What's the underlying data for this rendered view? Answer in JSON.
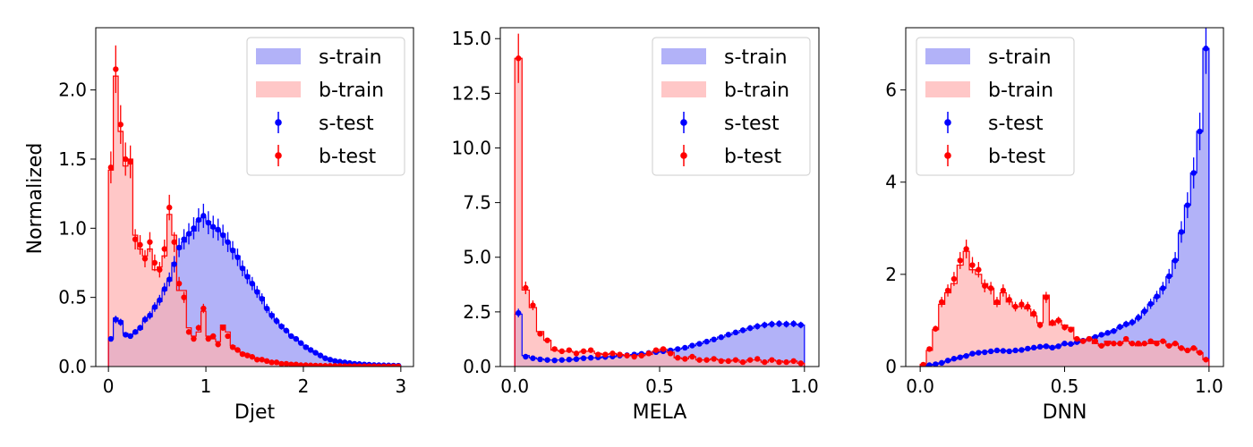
{
  "figure": {
    "ylabel": "Normalized"
  },
  "legend_labels": {
    "s_train": "s-train",
    "b_train": "b-train",
    "s_test": "s-test",
    "b_test": "b-test"
  },
  "colors": {
    "signal_fill": "#aeaef8",
    "signal_line": "#0000ff",
    "background_fill": "#ffb2b2",
    "background_line": "#ff0000",
    "overlap_fill": "#c57fac"
  },
  "chart_data": [
    {
      "type": "histogram",
      "xlabel": "Djet",
      "ylabel": "Normalized",
      "xlim": [
        -0.13,
        3.13
      ],
      "ylim": [
        0,
        2.45
      ],
      "xticks": [
        0,
        1,
        2,
        3
      ],
      "xtick_labels": [
        "0",
        "1",
        "2",
        "3"
      ],
      "yticks": [
        0,
        0.5,
        1.0,
        1.5,
        2.0
      ],
      "ytick_labels": [
        "0.0",
        "0.5",
        "1.0",
        "1.5",
        "2.0"
      ],
      "legend_position": "top-right",
      "bin_range": [
        0,
        3
      ],
      "series": [
        {
          "name": "s-train",
          "style": "filled-step",
          "values": [
            0.2,
            0.35,
            0.33,
            0.24,
            0.22,
            0.24,
            0.27,
            0.33,
            0.36,
            0.42,
            0.47,
            0.55,
            0.62,
            0.75,
            0.85,
            0.9,
            0.95,
            0.98,
            1.05,
            1.08,
            1.05,
            1.0,
            0.98,
            0.96,
            0.9,
            0.85,
            0.8,
            0.72,
            0.66,
            0.6,
            0.55,
            0.5,
            0.42,
            0.38,
            0.33,
            0.3,
            0.26,
            0.22,
            0.2,
            0.17,
            0.15,
            0.12,
            0.1,
            0.08,
            0.06,
            0.05,
            0.04,
            0.035,
            0.03,
            0.025,
            0.02,
            0.018,
            0.015,
            0.013,
            0.011,
            0.01,
            0.009,
            0.008,
            0.007,
            0.006
          ]
        },
        {
          "name": "b-train",
          "style": "filled-step",
          "values": [
            1.42,
            2.1,
            1.7,
            1.45,
            1.5,
            0.95,
            0.85,
            0.8,
            0.85,
            0.7,
            0.72,
            0.8,
            1.1,
            0.95,
            0.55,
            0.55,
            0.28,
            0.22,
            0.25,
            0.4,
            0.22,
            0.2,
            0.18,
            0.3,
            0.25,
            0.15,
            0.12,
            0.1,
            0.09,
            0.07,
            0.06,
            0.05,
            0.04,
            0.035,
            0.03,
            0.025,
            0.02,
            0.018,
            0.015,
            0.012,
            0.01,
            0.009,
            0.008,
            0.007,
            0.006,
            0.005,
            0.005,
            0.004,
            0.004,
            0.003,
            0.003,
            0.003,
            0.002,
            0.002,
            0.002,
            0.002,
            0.002,
            0.001,
            0.001,
            0.001
          ]
        },
        {
          "name": "s-test",
          "style": "errorbar",
          "values": [
            0.2,
            0.34,
            0.32,
            0.23,
            0.22,
            0.25,
            0.28,
            0.34,
            0.37,
            0.43,
            0.48,
            0.56,
            0.63,
            0.74,
            0.86,
            0.92,
            0.96,
            1.0,
            1.06,
            1.09,
            1.04,
            1.01,
            0.99,
            0.95,
            0.9,
            0.84,
            0.79,
            0.71,
            0.65,
            0.6,
            0.54,
            0.49,
            0.42,
            0.37,
            0.33,
            0.29,
            0.26,
            0.22,
            0.2,
            0.17,
            0.14,
            0.12,
            0.1,
            0.08,
            0.06,
            0.05,
            0.04,
            0.035,
            0.03,
            0.025,
            0.02,
            0.018,
            0.015,
            0.013,
            0.011,
            0.01,
            0.009,
            0.008,
            0.007,
            0.006
          ]
        },
        {
          "name": "b-test",
          "style": "errorbar",
          "values": [
            1.44,
            2.15,
            1.75,
            1.5,
            1.48,
            0.92,
            0.88,
            0.78,
            0.9,
            0.75,
            0.7,
            0.85,
            1.15,
            0.9,
            0.6,
            0.5,
            0.25,
            0.2,
            0.28,
            0.42,
            0.2,
            0.22,
            0.16,
            0.28,
            0.22,
            0.14,
            0.12,
            0.09,
            0.08,
            0.07,
            0.05,
            0.05,
            0.04,
            0.03,
            0.03,
            0.02,
            0.02,
            0.015,
            0.015,
            0.01,
            0.01,
            0.008,
            0.007,
            0.006,
            0.005,
            0.005,
            0.004,
            0.004,
            0.003,
            0.003,
            0.003,
            0.002,
            0.002,
            0.002,
            0.002,
            0.001,
            0.001,
            0.001,
            0.001,
            0.001
          ]
        }
      ]
    },
    {
      "type": "histogram",
      "xlabel": "MELA",
      "ylabel": "",
      "xlim": [
        -0.05,
        1.05
      ],
      "ylim": [
        0,
        15.5
      ],
      "xticks": [
        0,
        0.5,
        1
      ],
      "xtick_labels": [
        "0.0",
        "0.5",
        "1.0"
      ],
      "yticks": [
        0,
        2.5,
        5,
        7.5,
        10,
        12.5,
        15
      ],
      "ytick_labels": [
        "0.0",
        "2.5",
        "5.0",
        "7.5",
        "10.0",
        "12.5",
        "15.0"
      ],
      "legend_position": "top-right",
      "bin_range": [
        0,
        1
      ],
      "series": [
        {
          "name": "s-train",
          "style": "filled-step",
          "values": [
            2.4,
            0.5,
            0.4,
            0.35,
            0.3,
            0.3,
            0.3,
            0.3,
            0.35,
            0.4,
            0.4,
            0.4,
            0.45,
            0.45,
            0.5,
            0.5,
            0.55,
            0.6,
            0.6,
            0.65,
            0.7,
            0.75,
            0.8,
            0.85,
            0.95,
            1.05,
            1.15,
            1.25,
            1.35,
            1.45,
            1.55,
            1.65,
            1.75,
            1.85,
            1.9,
            1.95,
            1.95,
            1.95,
            1.95,
            1.9
          ]
        },
        {
          "name": "b-train",
          "style": "filled-step",
          "values": [
            14.1,
            3.5,
            2.7,
            1.6,
            1.2,
            0.75,
            0.7,
            0.7,
            0.65,
            0.7,
            0.7,
            0.6,
            0.55,
            0.6,
            0.55,
            0.5,
            0.5,
            0.5,
            0.55,
            0.7,
            0.8,
            0.65,
            0.4,
            0.35,
            0.45,
            0.3,
            0.3,
            0.35,
            0.3,
            0.25,
            0.3,
            0.2,
            0.3,
            0.3,
            0.2,
            0.3,
            0.25,
            0.2,
            0.25,
            0.15
          ]
        },
        {
          "name": "s-test",
          "style": "errorbar",
          "values": [
            2.45,
            0.45,
            0.38,
            0.33,
            0.3,
            0.28,
            0.3,
            0.32,
            0.34,
            0.38,
            0.4,
            0.42,
            0.44,
            0.46,
            0.5,
            0.52,
            0.55,
            0.58,
            0.62,
            0.66,
            0.7,
            0.74,
            0.8,
            0.86,
            0.96,
            1.04,
            1.14,
            1.24,
            1.34,
            1.46,
            1.56,
            1.66,
            1.76,
            1.84,
            1.9,
            1.94,
            1.96,
            1.94,
            1.96,
            1.9
          ]
        },
        {
          "name": "b-test",
          "style": "errorbar",
          "values": [
            14.1,
            3.6,
            2.8,
            1.5,
            1.2,
            0.8,
            0.7,
            0.75,
            0.6,
            0.7,
            0.75,
            0.55,
            0.55,
            0.6,
            0.55,
            0.5,
            0.45,
            0.5,
            0.6,
            0.75,
            0.8,
            0.6,
            0.4,
            0.35,
            0.45,
            0.3,
            0.3,
            0.35,
            0.25,
            0.25,
            0.3,
            0.2,
            0.3,
            0.35,
            0.2,
            0.3,
            0.2,
            0.2,
            0.25,
            0.15
          ]
        }
      ]
    },
    {
      "type": "histogram",
      "xlabel": "DNN",
      "ylabel": "",
      "xlim": [
        -0.05,
        1.05
      ],
      "ylim": [
        0,
        7.35
      ],
      "xticks": [
        0,
        0.5,
        1
      ],
      "xtick_labels": [
        "0.0",
        "0.5",
        "1.0"
      ],
      "yticks": [
        0,
        2,
        4,
        6
      ],
      "ytick_labels": [
        "0",
        "2",
        "4",
        "6"
      ],
      "legend_position": "top-left",
      "bin_range": [
        0,
        1
      ],
      "series": [
        {
          "name": "s-train",
          "style": "filled-step",
          "values": [
            0.02,
            0.03,
            0.05,
            0.08,
            0.12,
            0.16,
            0.2,
            0.24,
            0.27,
            0.3,
            0.32,
            0.33,
            0.34,
            0.35,
            0.33,
            0.34,
            0.36,
            0.38,
            0.4,
            0.42,
            0.45,
            0.4,
            0.45,
            0.5,
            0.48,
            0.52,
            0.55,
            0.6,
            0.65,
            0.68,
            0.72,
            0.78,
            0.85,
            0.9,
            0.95,
            1.05,
            1.2,
            1.35,
            1.5,
            1.7,
            1.95,
            2.3,
            2.9,
            3.5,
            4.2,
            5.1,
            6.9
          ]
        },
        {
          "name": "b-train",
          "style": "filled-step",
          "values": [
            0.05,
            0.35,
            0.8,
            1.35,
            1.6,
            1.8,
            2.2,
            2.5,
            2.1,
            2.0,
            1.8,
            1.7,
            1.35,
            1.6,
            1.4,
            1.3,
            1.3,
            1.25,
            1.1,
            0.95,
            1.55,
            0.9,
            1.0,
            0.9,
            0.85,
            0.6,
            0.55,
            0.6,
            0.5,
            0.45,
            0.55,
            0.5,
            0.5,
            0.55,
            0.5,
            0.45,
            0.5,
            0.5,
            0.55,
            0.55,
            0.45,
            0.5,
            0.4,
            0.35,
            0.4,
            0.3,
            0.15
          ]
        },
        {
          "name": "s-test",
          "style": "errorbar",
          "values": [
            0.02,
            0.03,
            0.05,
            0.08,
            0.13,
            0.17,
            0.2,
            0.23,
            0.28,
            0.3,
            0.31,
            0.33,
            0.35,
            0.34,
            0.33,
            0.35,
            0.36,
            0.39,
            0.41,
            0.43,
            0.44,
            0.41,
            0.44,
            0.5,
            0.49,
            0.53,
            0.56,
            0.6,
            0.64,
            0.69,
            0.73,
            0.77,
            0.86,
            0.92,
            0.96,
            1.06,
            1.2,
            1.36,
            1.52,
            1.7,
            1.96,
            2.3,
            2.92,
            3.5,
            4.2,
            5.1,
            6.9
          ]
        },
        {
          "name": "b-test",
          "style": "errorbar",
          "values": [
            0.04,
            0.38,
            0.82,
            1.4,
            1.65,
            1.9,
            2.3,
            2.55,
            2.2,
            2.1,
            1.75,
            1.7,
            1.4,
            1.65,
            1.45,
            1.3,
            1.35,
            1.3,
            1.15,
            0.9,
            1.5,
            0.95,
            1.0,
            0.85,
            0.8,
            0.6,
            0.55,
            0.6,
            0.55,
            0.45,
            0.5,
            0.5,
            0.5,
            0.6,
            0.5,
            0.5,
            0.5,
            0.55,
            0.5,
            0.55,
            0.45,
            0.5,
            0.4,
            0.35,
            0.4,
            0.3,
            0.15
          ]
        }
      ]
    }
  ]
}
